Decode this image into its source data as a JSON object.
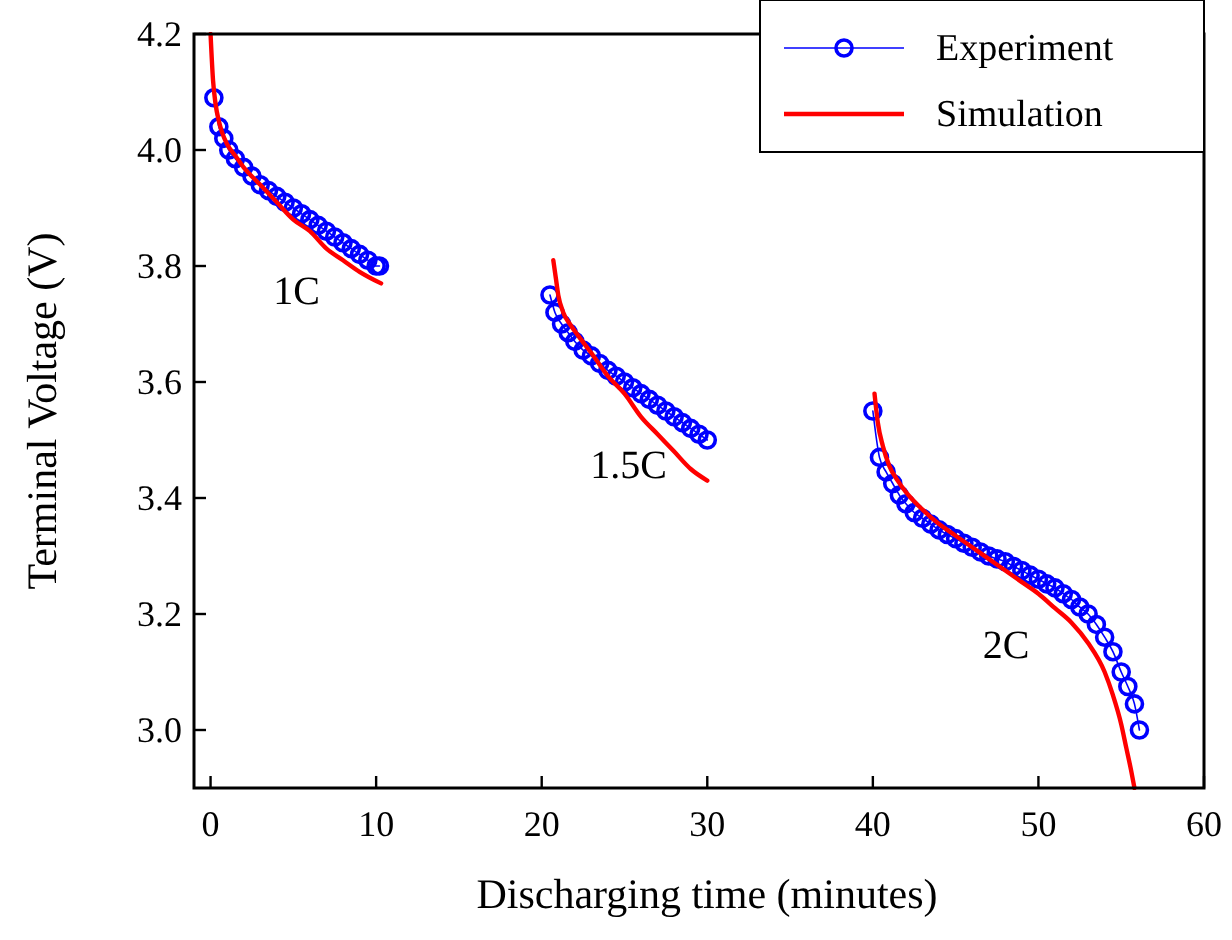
{
  "chart_data": {
    "type": "line",
    "xlabel": "Discharging time (minutes)",
    "ylabel": "Terminal Voltage (V)",
    "xlim": [
      -1,
      60
    ],
    "ylim": [
      2.9,
      4.2
    ],
    "xticks": [
      0,
      10,
      20,
      30,
      40,
      50,
      60
    ],
    "yticks": [
      {
        "value": 3.0,
        "label": "3.0"
      },
      {
        "value": 3.2,
        "label": "3.2"
      },
      {
        "value": 3.4,
        "label": "3.4"
      },
      {
        "value": 3.6,
        "label": "3.6"
      },
      {
        "value": 3.8,
        "label": "3.8"
      },
      {
        "value": 4.0,
        "label": "4.0"
      },
      {
        "value": 4.2,
        "label": "4.2"
      }
    ],
    "legend": "top right",
    "grid": false,
    "series": [
      {
        "name": "Experiment",
        "color": "#0000ff",
        "marker": "circle",
        "x": [
          0.2,
          0.5,
          0.8,
          1.1,
          1.5,
          2,
          2.5,
          3,
          3.5,
          4,
          4.5,
          5,
          5.5,
          6,
          6.5,
          7,
          7.5,
          8,
          8.5,
          9,
          9.5,
          10,
          10.2,
          15,
          20.5,
          20.8,
          21.2,
          21.6,
          22,
          22.5,
          23,
          23.5,
          24,
          24.5,
          25,
          25.5,
          26,
          26.5,
          27,
          27.5,
          28,
          28.5,
          29,
          29.5,
          30,
          35,
          40,
          40.4,
          40.8,
          41.2,
          41.6,
          42,
          42.5,
          43,
          43.5,
          44,
          44.5,
          45,
          45.5,
          46,
          46.5,
          47,
          47.5,
          48,
          48.5,
          49,
          49.5,
          50,
          50.5,
          51,
          51.5,
          52,
          52.5,
          53,
          53.5,
          54,
          54.5,
          55,
          55.4,
          55.8,
          56.1
        ],
        "values": [
          4.09,
          4.04,
          4.02,
          4.0,
          3.985,
          3.97,
          3.955,
          3.94,
          3.93,
          3.92,
          3.91,
          3.9,
          3.89,
          3.88,
          3.87,
          3.86,
          3.85,
          3.84,
          3.83,
          3.82,
          3.81,
          3.8,
          3.8,
          null,
          3.75,
          3.72,
          3.7,
          3.685,
          3.67,
          3.655,
          3.645,
          3.632,
          3.62,
          3.61,
          3.6,
          3.59,
          3.58,
          3.57,
          3.56,
          3.55,
          3.54,
          3.53,
          3.52,
          3.51,
          3.5,
          null,
          3.55,
          3.47,
          3.445,
          3.425,
          3.405,
          3.39,
          3.375,
          3.365,
          3.355,
          3.345,
          3.337,
          3.33,
          3.322,
          3.315,
          3.307,
          3.3,
          3.295,
          3.29,
          3.282,
          3.275,
          3.267,
          3.26,
          3.252,
          3.245,
          3.235,
          3.225,
          3.212,
          3.2,
          3.182,
          3.16,
          3.135,
          3.1,
          3.075,
          3.045,
          3.0
        ]
      },
      {
        "name": "Simulation",
        "color": "#ff0000",
        "marker": "none",
        "x": [
          0,
          0.15,
          0.3,
          0.5,
          0.7,
          1,
          1.5,
          2,
          3,
          4,
          5,
          6,
          7,
          8,
          9,
          10.3,
          15,
          20.7,
          20.85,
          21,
          21.3,
          21.7,
          22.2,
          23,
          24,
          25,
          26,
          27,
          28,
          29,
          30,
          35,
          40.1,
          40.3,
          40.6,
          41,
          41.5,
          42,
          43,
          44,
          45,
          46,
          47,
          48,
          49,
          50,
          51,
          52,
          53,
          54,
          54.5,
          55,
          55.3,
          55.6,
          55.8
        ],
        "values": [
          4.2,
          4.12,
          4.08,
          4.05,
          4.03,
          4.01,
          3.99,
          3.97,
          3.94,
          3.91,
          3.88,
          3.86,
          3.83,
          3.81,
          3.79,
          3.77,
          null,
          3.81,
          3.78,
          3.75,
          3.72,
          3.7,
          3.68,
          3.65,
          3.61,
          3.58,
          3.54,
          3.51,
          3.48,
          3.45,
          3.43,
          null,
          3.58,
          3.53,
          3.49,
          3.455,
          3.43,
          3.41,
          3.38,
          3.355,
          3.335,
          3.315,
          3.295,
          3.275,
          3.255,
          3.235,
          3.21,
          3.185,
          3.15,
          3.1,
          3.06,
          3.01,
          2.97,
          2.93,
          2.9
        ]
      }
    ],
    "annotations": [
      "1C",
      "1.5C",
      "2C"
    ]
  }
}
